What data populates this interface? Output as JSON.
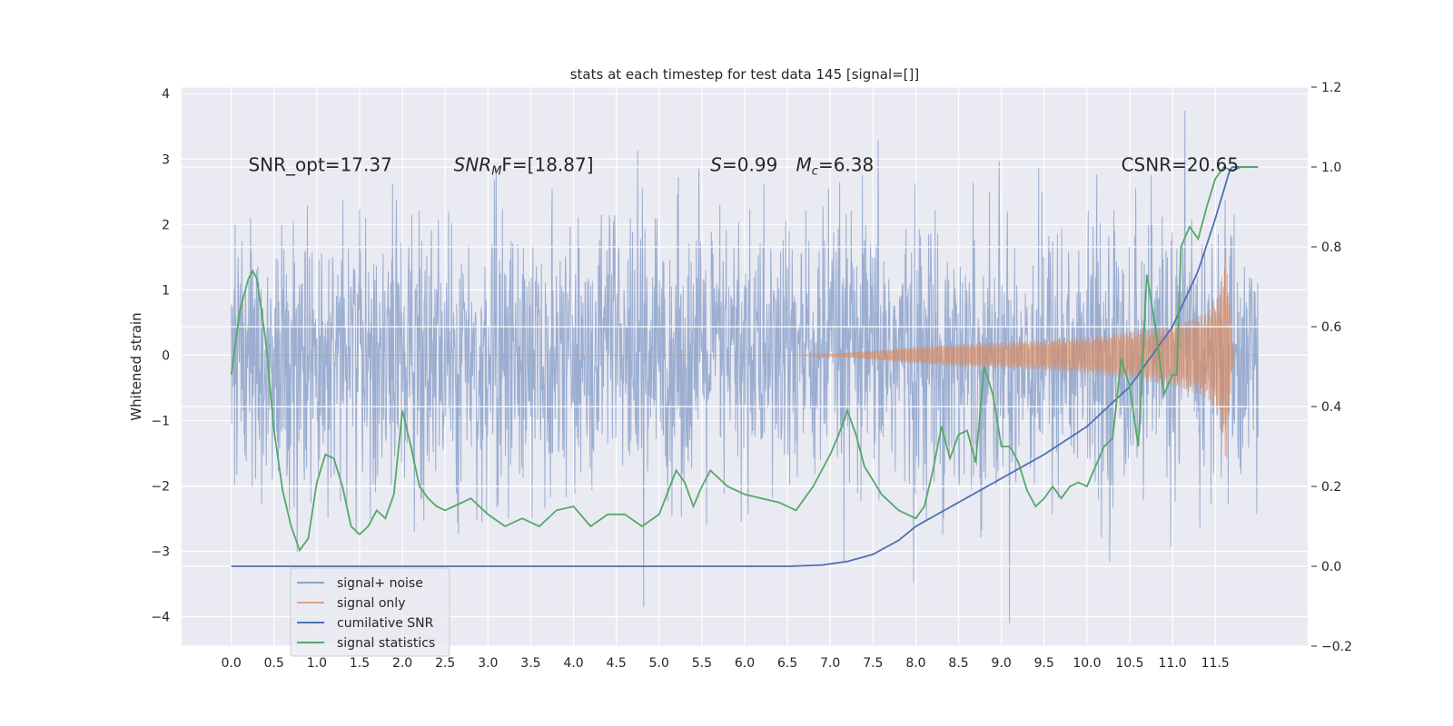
{
  "chart_data": {
    "type": "line",
    "title": "stats at each timestep for test data 145 [signal=[]]",
    "xlabel": "",
    "ylabel": "Whitened strain",
    "xlim": [
      -0.58,
      12.58
    ],
    "ylim": [
      -4.45,
      4.1
    ],
    "y2lim": [
      -0.2,
      1.2
    ],
    "x_ticks": [
      0.0,
      0.5,
      1.0,
      1.5,
      2.0,
      2.5,
      3.0,
      3.5,
      4.0,
      4.5,
      5.0,
      5.5,
      6.0,
      6.5,
      7.0,
      7.5,
      8.0,
      8.5,
      9.0,
      9.5,
      10.0,
      10.5,
      11.0,
      11.5
    ],
    "x_tick_labels": [
      "0.0",
      "0.5",
      "1.0",
      "1.5",
      "2.0",
      "2.5",
      "3.0",
      "3.5",
      "4.0",
      "4.5",
      "5.0",
      "5.5",
      "6.0",
      "6.5",
      "7.0",
      "7.5",
      "8.0",
      "8.5",
      "9.0",
      "9.5",
      "10.0",
      "10.5",
      "11.0",
      "11.5"
    ],
    "y_ticks": [
      -4,
      -3,
      -2,
      -1,
      0,
      1,
      2,
      3,
      4
    ],
    "y_tick_labels": [
      "−4",
      "−3",
      "−2",
      "−1",
      "0",
      "1",
      "2",
      "3",
      "4"
    ],
    "y2_ticks": [
      -0.2,
      0.0,
      0.2,
      0.4,
      0.6,
      0.8,
      1.0,
      1.2
    ],
    "y2_tick_labels": [
      "−0.2",
      "0.0",
      "0.2",
      "0.4",
      "0.6",
      "0.8",
      "1.0",
      "1.2"
    ],
    "annotations": [
      {
        "name": "snr-opt",
        "text": "SNR_opt=17.37",
        "x": 0.2,
        "y": 2.9
      },
      {
        "name": "snr-mf",
        "text": "SNR_MF=[18.87]",
        "x": 2.6,
        "y": 2.9,
        "main": "SNR",
        "sub": "M",
        "rest": "F=[18.87]"
      },
      {
        "name": "s-value",
        "text": "S=0.99",
        "x": 5.6,
        "y": 2.9,
        "main": "S",
        "rest": "=0.99"
      },
      {
        "name": "mc-value",
        "text": "M_c=6.38",
        "x": 6.6,
        "y": 2.9,
        "main": "M",
        "sub": "c",
        "rest": "=6.38"
      },
      {
        "name": "csnr",
        "text": "CSNR=20.65",
        "x": 10.4,
        "y": 2.9
      }
    ],
    "series": [
      {
        "name": "signal+ noise",
        "axis": "left",
        "color": "#4c72b0",
        "style": "dense noise, amplitude about ±2.5 with spikes to ±4",
        "x_range": [
          0.0,
          12.0
        ]
      },
      {
        "name": "signal only",
        "axis": "left",
        "color": "#dd8452",
        "style": "chirp with growing envelope",
        "x": [
          0.0,
          6.5,
          7.0,
          7.5,
          8.0,
          8.5,
          9.0,
          9.5,
          10.0,
          10.5,
          11.0,
          11.4,
          11.55,
          11.63,
          11.68,
          11.72,
          12.0
        ],
        "envelope": [
          0.0,
          0.0,
          0.02,
          0.07,
          0.13,
          0.17,
          0.2,
          0.23,
          0.28,
          0.36,
          0.47,
          0.65,
          0.95,
          1.7,
          0.5,
          0.0,
          0.0
        ]
      },
      {
        "name": "cumilative SNR",
        "axis": "right",
        "color": "#4c72b0",
        "x": [
          0.0,
          6.5,
          6.9,
          7.2,
          7.5,
          7.8,
          8.0,
          8.5,
          9.0,
          9.5,
          10.0,
          10.5,
          11.0,
          11.3,
          11.5,
          11.68,
          12.0
        ],
        "values": [
          0.0,
          0.0,
          0.003,
          0.012,
          0.03,
          0.065,
          0.1,
          0.16,
          0.22,
          0.28,
          0.35,
          0.45,
          0.6,
          0.74,
          0.87,
          1.0,
          1.0
        ]
      },
      {
        "name": "signal statistics",
        "axis": "right",
        "color": "#55a868",
        "x": [
          0.0,
          0.1,
          0.2,
          0.25,
          0.3,
          0.4,
          0.5,
          0.6,
          0.7,
          0.8,
          0.9,
          1.0,
          1.1,
          1.2,
          1.3,
          1.4,
          1.5,
          1.6,
          1.7,
          1.8,
          1.9,
          2.0,
          2.1,
          2.2,
          2.3,
          2.4,
          2.5,
          2.6,
          2.8,
          3.0,
          3.2,
          3.4,
          3.6,
          3.8,
          4.0,
          4.2,
          4.4,
          4.6,
          4.8,
          5.0,
          5.2,
          5.3,
          5.4,
          5.5,
          5.6,
          5.8,
          6.0,
          6.2,
          6.4,
          6.6,
          6.8,
          7.0,
          7.1,
          7.2,
          7.3,
          7.4,
          7.6,
          7.8,
          8.0,
          8.1,
          8.2,
          8.3,
          8.4,
          8.5,
          8.6,
          8.7,
          8.8,
          8.9,
          9.0,
          9.1,
          9.2,
          9.3,
          9.4,
          9.5,
          9.6,
          9.7,
          9.8,
          9.9,
          10.0,
          10.1,
          10.2,
          10.3,
          10.4,
          10.5,
          10.6,
          10.7,
          10.8,
          10.9,
          11.0,
          11.05,
          11.1,
          11.2,
          11.3,
          11.4,
          11.5,
          11.6,
          11.7,
          11.8,
          11.9,
          12.0
        ],
        "values": [
          0.48,
          0.64,
          0.72,
          0.74,
          0.72,
          0.57,
          0.34,
          0.19,
          0.1,
          0.04,
          0.07,
          0.21,
          0.28,
          0.27,
          0.2,
          0.1,
          0.08,
          0.1,
          0.14,
          0.12,
          0.18,
          0.39,
          0.3,
          0.2,
          0.17,
          0.15,
          0.14,
          0.15,
          0.17,
          0.13,
          0.1,
          0.12,
          0.1,
          0.14,
          0.15,
          0.1,
          0.13,
          0.13,
          0.1,
          0.13,
          0.24,
          0.21,
          0.15,
          0.2,
          0.24,
          0.2,
          0.18,
          0.17,
          0.16,
          0.14,
          0.2,
          0.28,
          0.33,
          0.39,
          0.33,
          0.25,
          0.18,
          0.14,
          0.12,
          0.15,
          0.24,
          0.35,
          0.27,
          0.33,
          0.34,
          0.26,
          0.5,
          0.43,
          0.3,
          0.3,
          0.26,
          0.19,
          0.15,
          0.17,
          0.2,
          0.17,
          0.2,
          0.21,
          0.2,
          0.25,
          0.3,
          0.32,
          0.52,
          0.45,
          0.3,
          0.73,
          0.6,
          0.43,
          0.48,
          0.48,
          0.8,
          0.85,
          0.82,
          0.9,
          0.97,
          1.0,
          0.99,
          1.0,
          1.0,
          1.0
        ]
      }
    ],
    "legend": {
      "position": "lower-left",
      "entries": [
        "signal+ noise",
        "signal only",
        "cumilative SNR",
        "signal statistics"
      ]
    }
  }
}
